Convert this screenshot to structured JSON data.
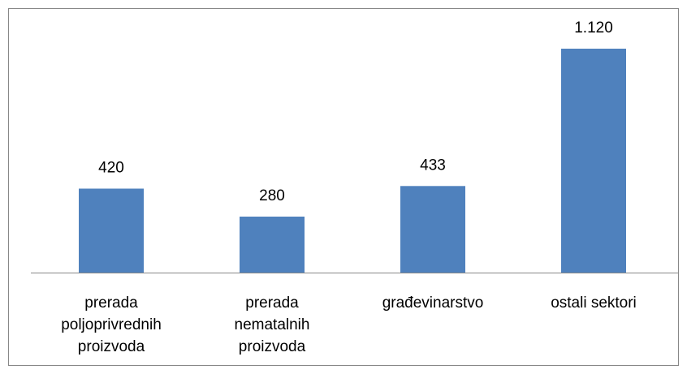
{
  "chart_data": {
    "type": "bar",
    "categories": [
      "prerada poljoprivrednih proizvoda",
      "prerada nematalnih proizvoda",
      "građevinarstvo",
      "ostali sektori"
    ],
    "values": [
      420,
      280,
      433,
      1120
    ],
    "value_labels": [
      "420",
      "280",
      "433",
      "1.120"
    ],
    "color": "#4f81bd"
  }
}
